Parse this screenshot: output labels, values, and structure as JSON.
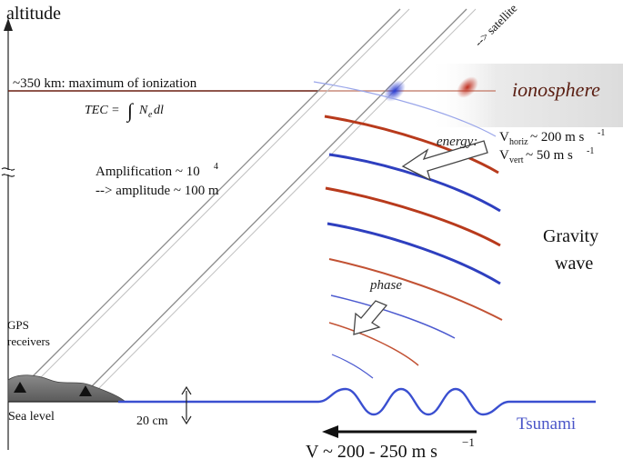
{
  "labels": {
    "axis": "altitude",
    "ionization_line": "~350 km: maximum of ionization",
    "tec_left": "TEC = ",
    "tec_integrand": "N",
    "tec_subscript": "e",
    "tec_right": " dl",
    "ionosphere": "ionosphere",
    "satellite": "--> satellite",
    "energy": "energy:",
    "v_horiz_v": "V",
    "v_horiz_sub": "horiz",
    "v_horiz_val": " ~ 200 m s",
    "v_horiz_exp": "-1",
    "v_vert_v": "V",
    "v_vert_sub": "vert",
    "v_vert_val": " ~ 50 m s",
    "v_vert_exp": "-1",
    "amplification_prefix": "Amplification ~ 10",
    "amplification_exp": "4",
    "amplitude": "--> amplitude ~ 100 m",
    "gravity": "Gravity",
    "wave": "wave",
    "phase": "phase",
    "gps_line1": "GPS",
    "gps_line2": "receivers",
    "sea_level": "Sea level",
    "twenty_cm": "20 cm",
    "tsunami": "Tsunami",
    "velocity_main": "V ~ 200 - 250 m s",
    "velocity_exp": "−1"
  },
  "colors": {
    "red_wave": "#b83a1c",
    "blue_wave": "#2e3fbf",
    "tsunami_line": "#3a4fd0",
    "tsunami_text": "#4a55c8",
    "ionosphere_line": "#7a2a1a",
    "ground": "#6f6f6f",
    "los_line": "#8a8a8a"
  }
}
